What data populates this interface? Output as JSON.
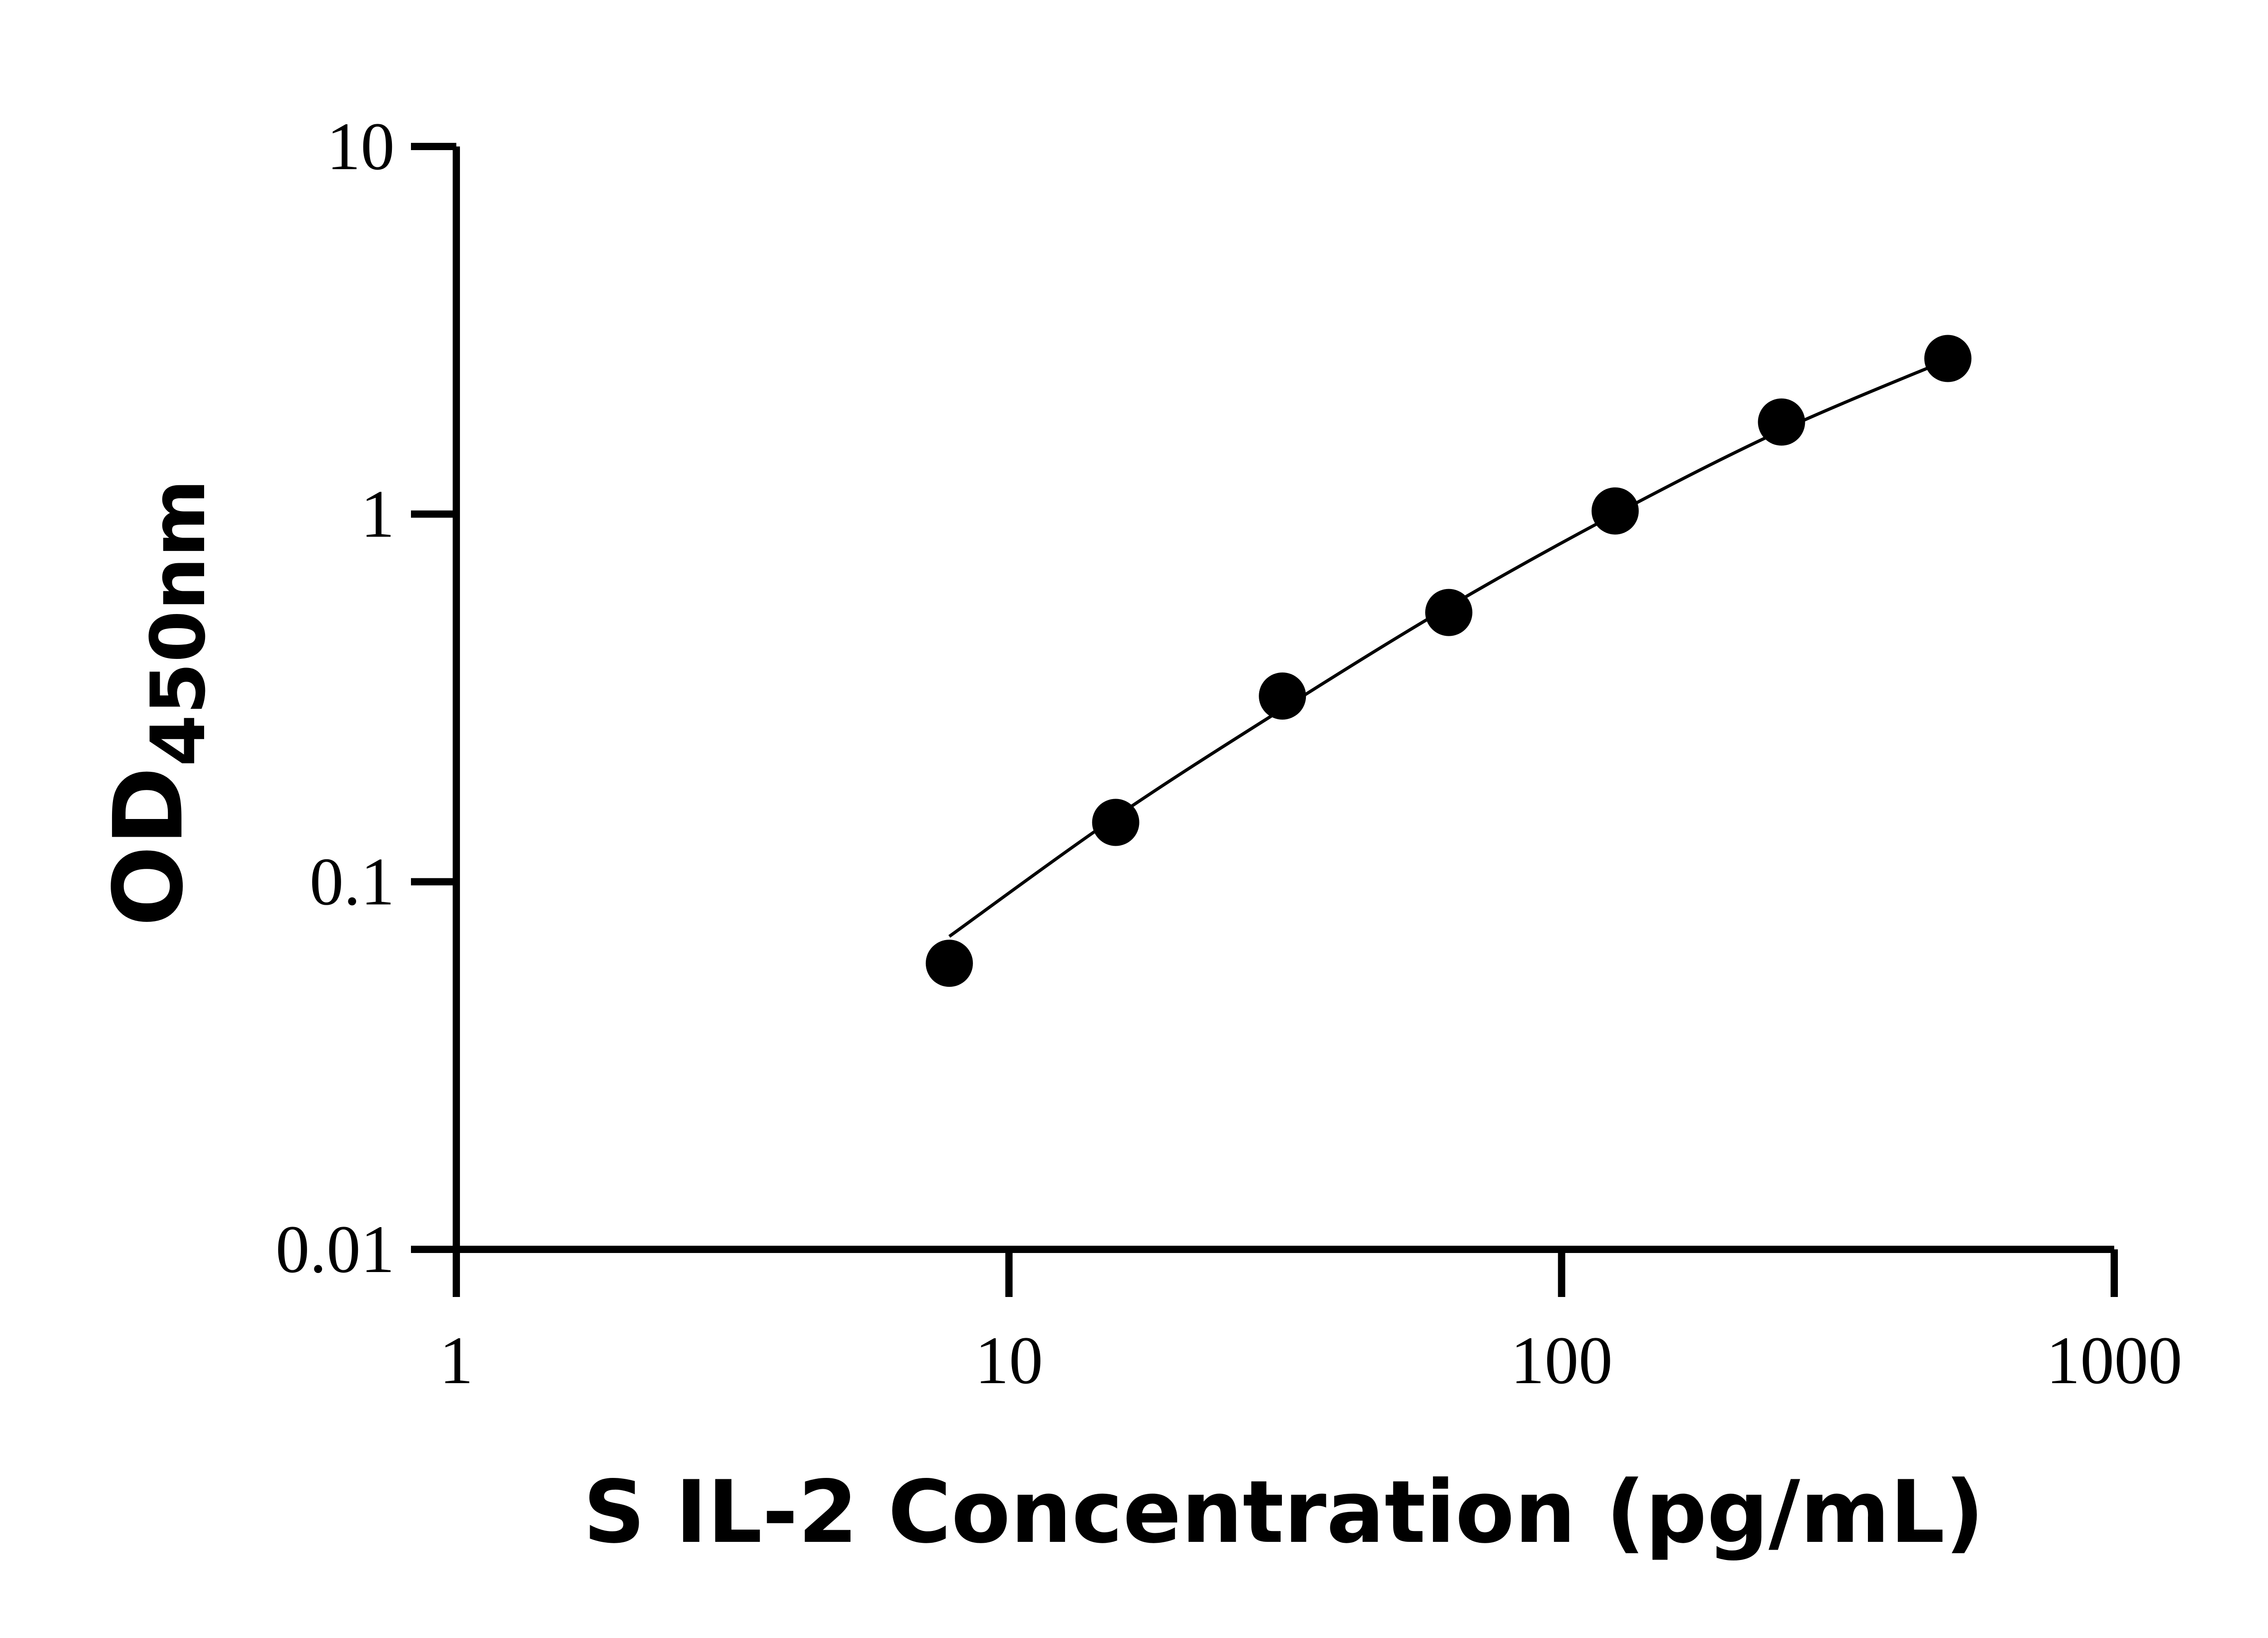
{
  "chart_data": {
    "type": "scatter",
    "title": "",
    "xlabel": "S IL-2 Concentration (pg/mL)",
    "ylabel_main": "OD",
    "ylabel_sub": "450nm",
    "x_scale": "log",
    "y_scale": "log",
    "xlim": [
      1,
      1000
    ],
    "ylim": [
      0.01,
      10
    ],
    "x_ticks": [
      1,
      10,
      100,
      1000
    ],
    "x_tick_labels": [
      "1",
      "10",
      "100",
      "1000"
    ],
    "y_ticks": [
      0.01,
      0.1,
      1,
      10
    ],
    "y_tick_labels": [
      "0.01",
      "0.1",
      "1",
      "10"
    ],
    "grid": false,
    "legend": "none",
    "series": [
      {
        "points": [
          {
            "x": 7.8,
            "y": 0.06
          },
          {
            "x": 15.6,
            "y": 0.145
          },
          {
            "x": 31.25,
            "y": 0.32
          },
          {
            "x": 62.5,
            "y": 0.54
          },
          {
            "x": 125,
            "y": 1.02
          },
          {
            "x": 250,
            "y": 1.78
          },
          {
            "x": 500,
            "y": 2.65
          }
        ],
        "fit_curve": {
          "x": [
            7.8,
            15.6,
            31.25,
            62.5,
            125,
            250,
            500
          ],
          "y": [
            0.071,
            0.15,
            0.295,
            0.56,
            1.0,
            1.69,
            2.63
          ]
        },
        "color": "#000000"
      }
    ]
  }
}
